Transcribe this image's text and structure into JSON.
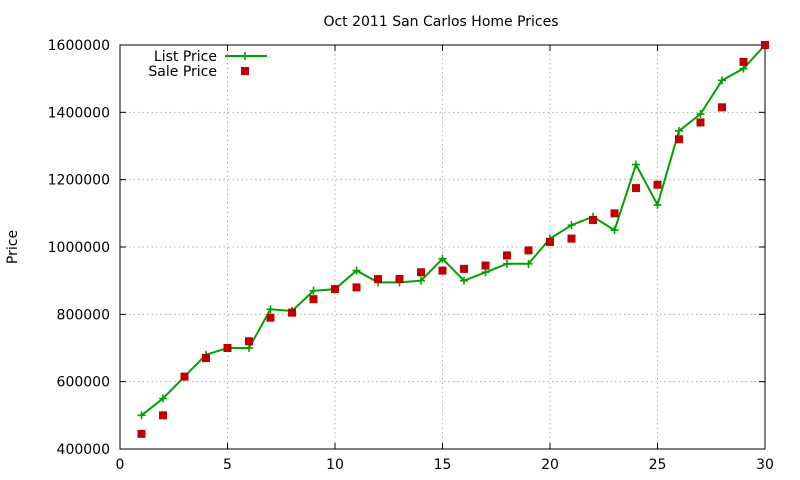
{
  "chart_data": {
    "type": "line",
    "title": "Oct 2011 San Carlos Home Prices",
    "xlabel": "",
    "ylabel": "Price",
    "xlim": [
      0,
      30
    ],
    "ylim": [
      400000,
      1600000
    ],
    "xticks": [
      0,
      5,
      10,
      15,
      20,
      25,
      30
    ],
    "yticks": [
      400000,
      600000,
      800000,
      1000000,
      1200000,
      1400000,
      1600000
    ],
    "grid": true,
    "legend_position": "top-left",
    "x": [
      1,
      2,
      3,
      4,
      5,
      6,
      7,
      8,
      9,
      10,
      11,
      12,
      13,
      14,
      15,
      16,
      17,
      18,
      19,
      20,
      21,
      22,
      23,
      24,
      25,
      26,
      27,
      28,
      29,
      30
    ],
    "series": [
      {
        "name": "List Price",
        "style": "line+plus",
        "color": "#00a000",
        "values": [
          500000,
          550000,
          615000,
          680000,
          700000,
          700000,
          815000,
          810000,
          870000,
          875000,
          930000,
          895000,
          895000,
          900000,
          965000,
          900000,
          925000,
          950000,
          950000,
          1025000,
          1065000,
          1090000,
          1050000,
          1245000,
          1125000,
          1345000,
          1395000,
          1495000,
          1530000,
          1600000
        ]
      },
      {
        "name": "Sale Price",
        "style": "square",
        "color": "#c00000",
        "values": [
          445000,
          500000,
          615000,
          670000,
          700000,
          720000,
          790000,
          805000,
          845000,
          875000,
          880000,
          905000,
          905000,
          925000,
          930000,
          935000,
          945000,
          975000,
          990000,
          1015000,
          1025000,
          1080000,
          1100000,
          1175000,
          1185000,
          1320000,
          1370000,
          1415000,
          1550000,
          1600000
        ]
      }
    ]
  }
}
